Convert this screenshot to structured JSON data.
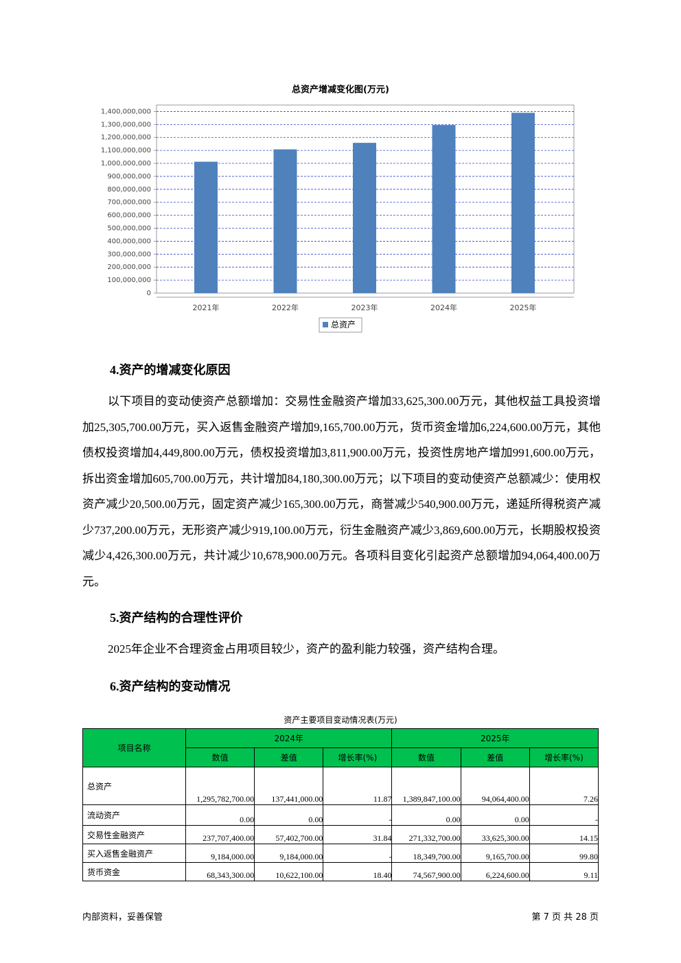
{
  "chart_data": {
    "type": "bar",
    "title": "总资产增减变化图(万元)",
    "categories": [
      "2021年",
      "2022年",
      "2023年",
      "2024年",
      "2025年"
    ],
    "series": [
      {
        "name": "总资产",
        "color": "#4f81bd",
        "values": [
          1013000000,
          1108000000,
          1158341700,
          1295782700,
          1389847100
        ]
      }
    ],
    "ylim": [
      0,
      1450000000
    ],
    "yticks": [
      0,
      {
        "value": 100000000,
        "label": "100,000,000"
      },
      {
        "value": 200000000,
        "label": "200,000,000"
      },
      {
        "value": 300000000,
        "label": "300,000,000"
      },
      {
        "value": 400000000,
        "label": "400,000,000"
      },
      {
        "value": 500000000,
        "label": "500,000,000"
      },
      {
        "value": 600000000,
        "label": "600,000,000"
      },
      {
        "value": 700000000,
        "label": "700,000,000"
      },
      {
        "value": 800000000,
        "label": "800,000,000"
      },
      {
        "value": 900000000,
        "label": "900,000,000"
      },
      {
        "value": 1000000000,
        "label": "1,000,000,000"
      },
      {
        "value": 1100000000,
        "label": "1,100,000,000"
      },
      {
        "value": 1200000000,
        "label": "1,200,000,000"
      },
      {
        "value": 1300000000,
        "label": "1,300,000,000"
      },
      {
        "value": 1400000000,
        "label": "1,400,000,000"
      }
    ],
    "grid": true,
    "legend": "bottom"
  },
  "sections": [
    {
      "heading": "4.资产的增减变化原因",
      "text": "以下项目的变动使资产总额增加：交易性金融资产增加33,625,300.00万元，其他权益工具投资增加25,305,700.00万元，买入返售金融资产增加9,165,700.00万元，货币资金增加6,224,600.00万元，其他债权投资增加4,449,800.00万元，债权投资增加3,811,900.00万元，投资性房地产增加991,600.00万元，拆出资金增加605,700.00万元，共计增加84,180,300.00万元；以下项目的变动使资产总额减少：使用权资产减少20,500.00万元，固定资产减少165,300.00万元，商誉减少540,900.00万元，递延所得税资产减少737,200.00万元，无形资产减少919,100.00万元，衍生金融资产减少3,869,600.00万元，长期股权投资减少4,426,300.00万元，共计减少10,678,900.00万元。各项科目变化引起资产总额增加94,064,400.00万元。"
    },
    {
      "heading": "5.资产结构的合理性评价",
      "text": "2025年企业不合理资金占用项目较少，资产的盈利能力较强，资产结构合理。"
    },
    {
      "heading": "6.资产结构的变动情况"
    }
  ],
  "table": {
    "caption": "资产主要项目变动情况表(万元)",
    "name_header": "项目名称",
    "groups": [
      {
        "label": "2024年",
        "columns": [
          "数值",
          "差值",
          "增长率(%)"
        ]
      },
      {
        "label": "2025年",
        "columns": [
          "数值",
          "差值",
          "增长率(%)"
        ]
      }
    ],
    "rows": [
      {
        "name": "总资产",
        "cells": [
          "1,295,782,700.00",
          "137,441,000.00",
          "11.87",
          "1,389,847,100.00",
          "94,064,400.00",
          "7.26"
        ]
      },
      {
        "name": "流动资产",
        "cells": [
          "0.00",
          "0.00",
          "-",
          "0.00",
          "0.00",
          "-"
        ]
      },
      {
        "name": "交易性金融资产",
        "cells": [
          "237,707,400.00",
          "57,402,700.00",
          "31.84",
          "271,332,700.00",
          "33,625,300.00",
          "14.15"
        ]
      },
      {
        "name": "买入返售金融资产",
        "cells": [
          "9,184,000.00",
          "9,184,000.00",
          "-",
          "18,349,700.00",
          "9,165,700.00",
          "99.80"
        ]
      },
      {
        "name": "货币资金",
        "cells": [
          "68,343,300.00",
          "10,622,100.00",
          "18.40",
          "74,567,900.00",
          "6,224,600.00",
          "9.11"
        ]
      }
    ]
  },
  "footer": {
    "left": "内部资料，妥善保管",
    "right": "第 7 页 共 28 页"
  }
}
